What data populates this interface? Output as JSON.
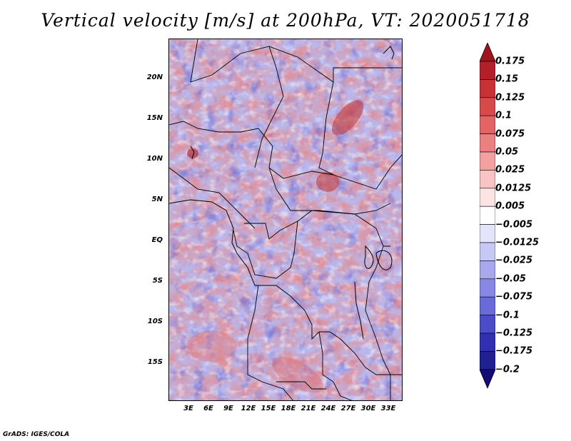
{
  "title": "Vertical velocity [m/s] at 200hPa, VT: 2020051718",
  "credit": "GrADS: IGES/COLA",
  "map": {
    "lat_labels": [
      "20N",
      "15N",
      "10N",
      "5N",
      "EQ",
      "5S",
      "10S",
      "15S"
    ],
    "lon_labels": [
      "3E",
      "6E",
      "9E",
      "12E",
      "15E",
      "18E",
      "21E",
      "24E",
      "27E",
      "30E",
      "33E"
    ],
    "lat_values": [
      20,
      15,
      10,
      5,
      0,
      -5,
      -10,
      -15
    ],
    "lon_values": [
      3,
      6,
      9,
      12,
      15,
      18,
      21,
      24,
      27,
      30,
      33
    ],
    "extent": {
      "lon_min": 0,
      "lon_max": 35,
      "lat_min": -19.5,
      "lat_max": 24.5
    }
  },
  "colorbar": {
    "levels": [
      "0.175",
      "0.15",
      "0.125",
      "0.1",
      "0.075",
      "0.05",
      "0.025",
      "0.0125",
      "0.005",
      "−0.005",
      "−0.0125",
      "−0.025",
      "−0.05",
      "−0.075",
      "−0.1",
      "−0.125",
      "−0.175",
      "−0.2"
    ],
    "colors": [
      "#a0141e",
      "#b4202a",
      "#c83236",
      "#d84a4a",
      "#e26464",
      "#ea8080",
      "#f2a0a0",
      "#f8c4c4",
      "#fce4e4",
      "#ffffff",
      "#e4e4fa",
      "#c8c8f4",
      "#a8a8ee",
      "#8888e4",
      "#6a6ad8",
      "#4c4cc8",
      "#3030b0",
      "#202090",
      "#140a78"
    ]
  }
}
